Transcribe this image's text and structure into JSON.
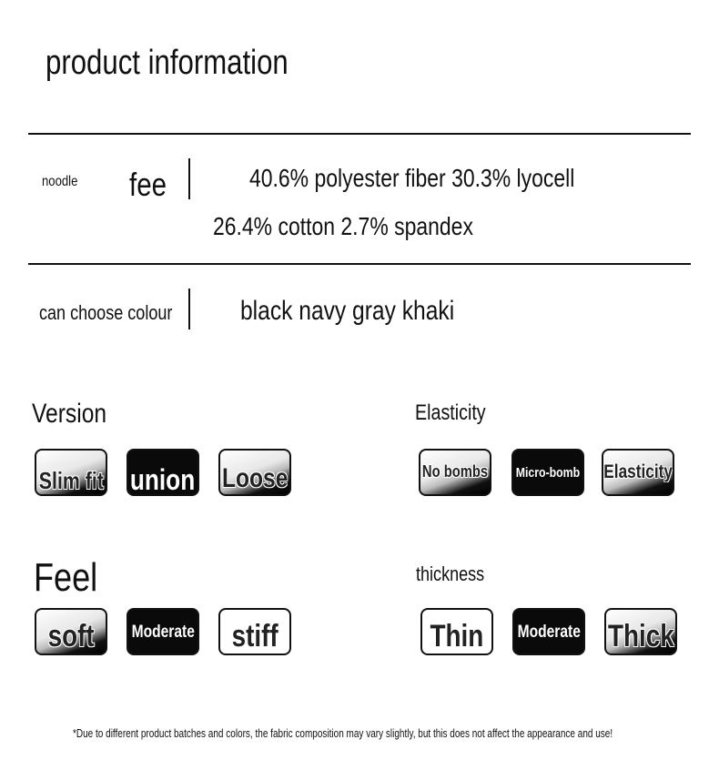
{
  "title": "product information",
  "fabric": {
    "label": "noodle",
    "label2": "fee",
    "line1": "40.6% polyester fiber 30.3% lyocell",
    "line2": "26.4% cotton 2.7% spandex"
  },
  "colour": {
    "label": "can choose colour",
    "value": "black navy gray khaki"
  },
  "version": {
    "title": "Version",
    "options": [
      "Slim fit",
      "union",
      "Loose"
    ],
    "selected": "union"
  },
  "elasticity": {
    "title": "Elasticity",
    "options": [
      "No bombs",
      "Micro-bomb",
      "Elasticity"
    ],
    "selected": "Micro-bomb"
  },
  "feel": {
    "title": "Feel",
    "options": [
      "soft",
      "Moderate",
      "stiff"
    ],
    "selected": "Moderate"
  },
  "thickness": {
    "title": "thickness",
    "options": [
      "Thin",
      "Moderate",
      "Thick"
    ],
    "selected": "Moderate"
  },
  "footnote": "*Due to different product batches and colors, the fabric composition may vary slightly, but this does not affect the appearance and use!"
}
